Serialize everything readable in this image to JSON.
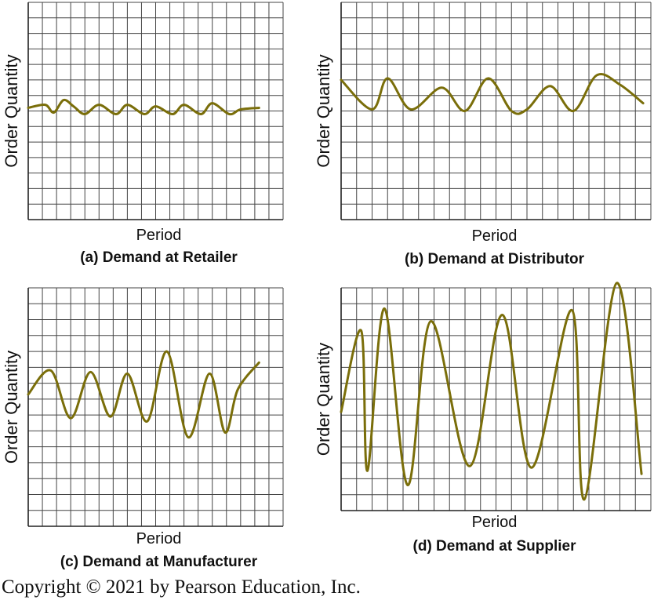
{
  "colors": {
    "curve": "#7a6e0a",
    "grid": "#444444"
  },
  "copyright": "Copyright © 2021 by Pearson Education, Inc.",
  "chart_data": [
    {
      "type": "line",
      "title": "",
      "caption": "(a) Demand at Retailer",
      "xlabel": "Period",
      "ylabel": "Order Quantity",
      "grid": true,
      "x": [
        0,
        1.2,
        1.8,
        2.5,
        3.2,
        4.0,
        5.0,
        6.2,
        7.0,
        8.2,
        9.0,
        10.2,
        11.0,
        12.2,
        13.0,
        14.2,
        15.0,
        16.3
      ],
      "y": [
        7.2,
        7.4,
        6.9,
        7.7,
        7.3,
        6.8,
        7.4,
        6.8,
        7.4,
        6.8,
        7.3,
        6.8,
        7.4,
        6.8,
        7.5,
        6.8,
        7.1,
        7.2
      ]
    },
    {
      "type": "line",
      "title": "",
      "caption": "(b) Demand at Distributor",
      "xlabel": "Period",
      "ylabel": "Order Quantity",
      "grid": true,
      "x": [
        0,
        2.0,
        3.0,
        4.5,
        6.5,
        8.0,
        9.5,
        11.0,
        12.0,
        13.5,
        15.0,
        16.5,
        18.0,
        19.5
      ],
      "y": [
        9.0,
        7.1,
        9.1,
        7.1,
        8.5,
        7.0,
        9.1,
        7.0,
        7.1,
        8.6,
        7.0,
        9.3,
        8.7,
        7.5
      ],
      "x_note_hidden": true
    },
    {
      "type": "line",
      "title": "",
      "caption": "(c) Demand at Manufacturer",
      "xlabel": "Period",
      "ylabel": "Order Quantity",
      "grid": true,
      "x": [
        0,
        1.6,
        3.0,
        4.4,
        5.8,
        7.0,
        8.4,
        9.8,
        11.3,
        12.8,
        13.9,
        14.8,
        16.3
      ],
      "y": [
        8.3,
        9.8,
        6.8,
        9.7,
        6.9,
        9.6,
        6.6,
        11.0,
        5.6,
        9.6,
        5.9,
        8.6,
        10.3
      ]
    },
    {
      "type": "line",
      "title": "",
      "caption": "(d) Demand at Supplier",
      "xlabel": "Period",
      "ylabel": "Order Quantity",
      "grid": true,
      "x": [
        0,
        1.3,
        1.7,
        2.8,
        4.3,
        5.8,
        8.3,
        10.4,
        12.3,
        14.9,
        15.7,
        17.8,
        19.4
      ],
      "y": [
        6.2,
        11.3,
        2.5,
        12.7,
        1.6,
        11.9,
        2.8,
        12.3,
        2.7,
        12.6,
        0.7,
        14.3,
        2.3
      ]
    }
  ]
}
